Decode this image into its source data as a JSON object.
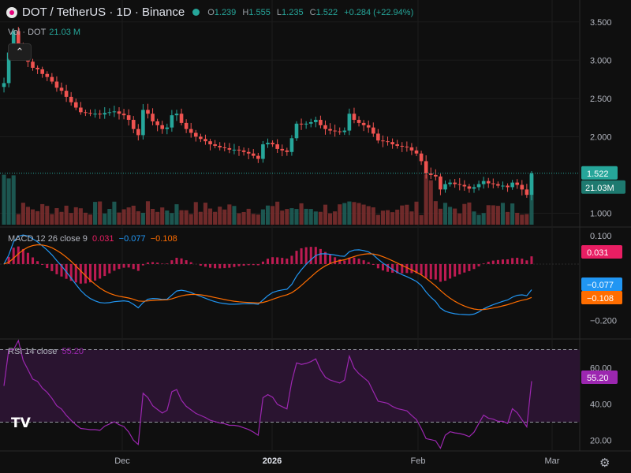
{
  "header": {
    "title": "DOT / TetherUS · 1D · Binance",
    "o_label": "O",
    "o": "1.239",
    "h_label": "H",
    "h": "1.555",
    "l_label": "L",
    "l": "1.235",
    "c_label": "C",
    "c": "1.522",
    "change": "+0.284 (+22.94%)"
  },
  "volume": {
    "label": "Vol · DOT",
    "value": "21.03 M"
  },
  "macd_panel": {
    "label": "MACD 12 26 close 9",
    "hist": "0.031",
    "macd": "−0.077",
    "signal": "−0.108"
  },
  "rsi_panel": {
    "label": "RSI 14 close",
    "value": "55.20"
  },
  "colors": {
    "up": "#26a69a",
    "down": "#ef5350",
    "macd": "#2196f3",
    "signal": "#ff6d00",
    "hist": "#e91e63",
    "rsi": "#9c27b0",
    "bg": "#0f0f0f"
  },
  "chart_data": {
    "type": "line",
    "price_axis_ticks": [
      "3.500",
      "3.000",
      "2.500",
      "2.000",
      "1.000"
    ],
    "price_ticks_values": [
      3.5,
      3.0,
      2.5,
      2.0,
      1.0
    ],
    "price_ylim": [
      0.85,
      3.58
    ],
    "x_ticks": [
      "Dec",
      "2026",
      "Feb",
      "Mar"
    ],
    "last_price_label": "1.522",
    "last_volume_label": "21.03M",
    "close_series": [
      2.7,
      3.1,
      3.38,
      3.18,
      3.05,
      2.98,
      2.9,
      2.88,
      2.82,
      2.78,
      2.72,
      2.64,
      2.6,
      2.52,
      2.45,
      2.38,
      2.32,
      2.31,
      2.3,
      2.3,
      2.29,
      2.31,
      2.32,
      2.33,
      2.3,
      2.28,
      2.22,
      2.1,
      2.02,
      2.35,
      2.3,
      2.2,
      2.15,
      2.1,
      2.12,
      2.28,
      2.3,
      2.18,
      2.1,
      2.05,
      2.0,
      1.97,
      1.94,
      1.9,
      1.88,
      1.86,
      1.85,
      1.83,
      1.83,
      1.82,
      1.8,
      1.78,
      1.75,
      1.71,
      1.9,
      1.92,
      1.9,
      1.84,
      1.82,
      1.8,
      1.98,
      2.17,
      2.16,
      2.17,
      2.19,
      2.22,
      2.15,
      2.1,
      2.08,
      2.07,
      2.06,
      2.08,
      2.3,
      2.22,
      2.18,
      2.15,
      2.12,
      2.04,
      1.95,
      1.94,
      1.93,
      1.9,
      1.88,
      1.87,
      1.86,
      1.82,
      1.78,
      1.68,
      1.52,
      1.5,
      1.48,
      1.31,
      1.38,
      1.4,
      1.38,
      1.37,
      1.35,
      1.32,
      1.34,
      1.38,
      1.42,
      1.39,
      1.38,
      1.36,
      1.36,
      1.34,
      1.4,
      1.37,
      1.31,
      1.24,
      1.52
    ],
    "macd_axis_ticks": [
      "0.100",
      "−0.200"
    ],
    "macd_ticks_values": [
      0.1,
      -0.2
    ],
    "rsi_axis_ticks": [
      "60.00",
      "40.00",
      "20.00"
    ],
    "rsi_ticks_values": [
      60,
      40,
      20
    ],
    "rsi_bands": [
      70,
      30
    ]
  }
}
